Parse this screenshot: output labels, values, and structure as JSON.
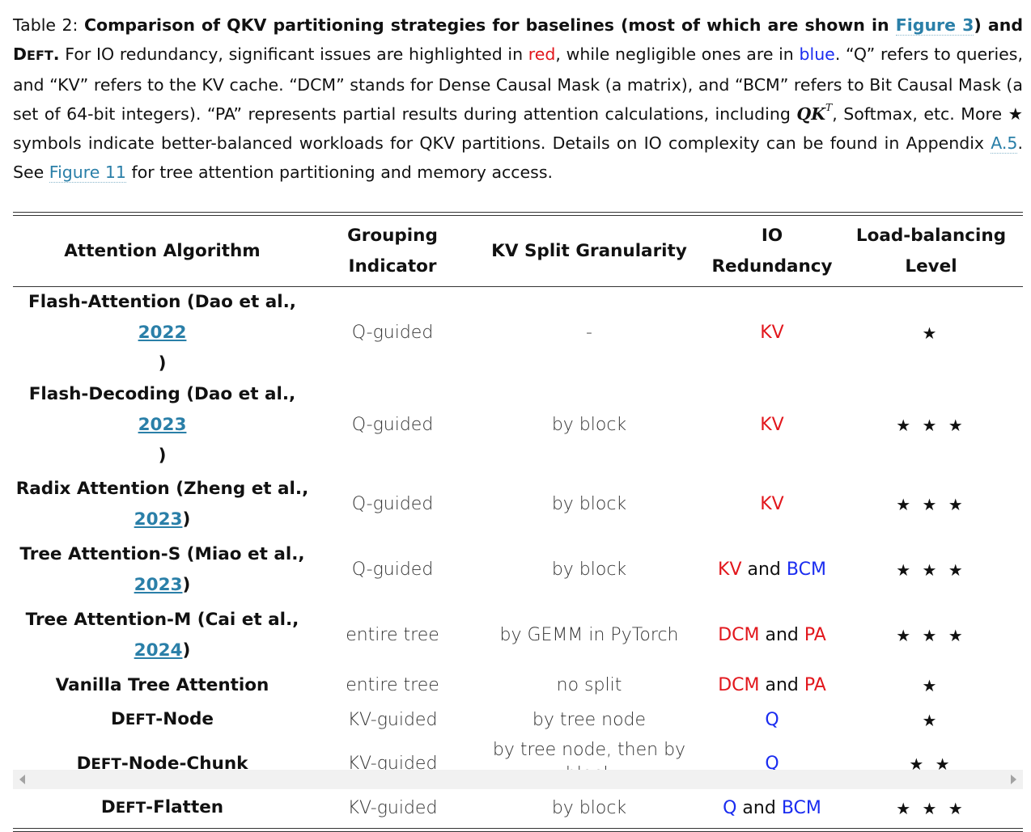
{
  "caption": {
    "label": "Table 2: ",
    "title_part1": "Comparison of QKV partitioning strategies for baselines (most of which are shown in ",
    "title_link": "Figure 3",
    "title_part2": ") and D",
    "title_sc": "EFT",
    "title_end": ".",
    "s1": " For IO redundancy, significant issues are highlighted in ",
    "red_word": "red",
    "s2": ", while negligible ones are in ",
    "blue_word": "blue",
    "s3": ". “Q” refers to queries, and “KV” refers to the KV cache. “DCM” stands for Dense Causal Mask (a matrix), and “BCM” refers to Bit Causal Mask (a set of 64-bit integers). “PA” represents partial results during attention calculations, including ",
    "math_qk": "QK",
    "math_sup": "T",
    "s4": ", Softmax, etc. More ★ symbols indicate better-balanced workloads for QKV partitions. Details on IO complexity can be found in Appendix ",
    "appendix_link": "A.5",
    "s5": ". See ",
    "figure11_link": "Figure 11",
    "s6": " for tree attention partitioning and memory access."
  },
  "table": {
    "headers": {
      "algo": "Attention Algorithm",
      "grouping_1": "Grouping",
      "grouping_2": "Indicator",
      "split": "KV Split Granularity",
      "io_1": "IO",
      "io_2": "Redundancy",
      "lb_1": "Load-balancing",
      "lb_2": "Level"
    },
    "rows": [
      {
        "name_a": "Flash-Attention (Dao et al., ",
        "year": "2022",
        "name_b": ")",
        "grouping": "Q-guided",
        "split": "-",
        "io_a": "KV",
        "io_join": "",
        "io_b": "",
        "stars": "★"
      },
      {
        "name_a": "Flash-Decoding (Dao et al., ",
        "year": "2023",
        "name_b": ")",
        "grouping": "Q-guided",
        "split": "by block",
        "io_a": "KV",
        "io_join": "",
        "io_b": "",
        "stars": "★ ★ ★"
      },
      {
        "name_a": "Radix Attention (Zheng et al.,",
        "year": "2023",
        "name_b": ")",
        "grouping": "Q-guided",
        "split": "by block",
        "io_a": "KV",
        "io_join": "",
        "io_b": "",
        "stars": "★ ★ ★"
      },
      {
        "name_a": "Tree Attention-S (Miao et al.,",
        "year": "2023",
        "name_b": ")",
        "grouping": "Q-guided",
        "split": "by block",
        "io_a": "KV",
        "io_join": " and ",
        "io_b": "BCM",
        "stars": "★ ★ ★"
      },
      {
        "name_a": "Tree Attention-M (Cai et al.,",
        "year": "2024",
        "name_b": ")",
        "grouping": "entire tree",
        "split": "by GEMM in PyTorch",
        "io_a": "DCM",
        "io_join": " and ",
        "io_b": "PA",
        "stars": "★ ★ ★"
      },
      {
        "name": "Vanilla Tree Attention",
        "grouping": "entire tree",
        "split": "no split",
        "io_a": "DCM",
        "io_join": " and ",
        "io_b": "PA",
        "stars": "★"
      },
      {
        "name_d": "D",
        "name_sc": "EFT",
        "name_rest": "-Node",
        "grouping": "KV-guided",
        "split": "by tree node",
        "io_a": "Q",
        "io_join": "",
        "io_b": "",
        "stars": "★"
      },
      {
        "name_d": "D",
        "name_sc": "EFT",
        "name_rest": "-Node-Chunk",
        "grouping": "KV-guided",
        "split_1": "by tree node, then by",
        "split_2": "block",
        "io_a": "Q",
        "io_join": "",
        "io_b": "",
        "stars": "★ ★"
      },
      {
        "name_d": "D",
        "name_sc": "EFT",
        "name_rest": "-Flatten",
        "grouping": "KV-guided",
        "split": "by block",
        "io_a": "Q",
        "io_join": " and ",
        "io_b": "BCM",
        "stars": "★ ★ ★"
      }
    ]
  },
  "colors": {
    "link": "#2a7fa8",
    "red": "#e2161c",
    "blue": "#1a2cf0"
  }
}
